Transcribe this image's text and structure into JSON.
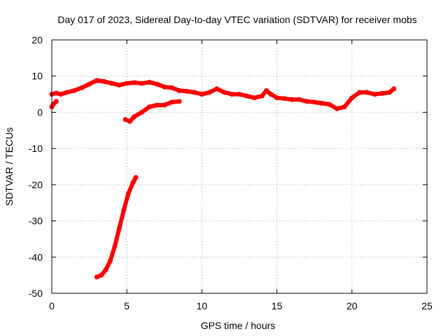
{
  "chart_data": {
    "type": "scatter",
    "title": "Day 017 of 2023, Sidereal Day-to-day VTEC variation (SDTVAR) for receiver mobs",
    "xlabel": "GPS time / hours",
    "ylabel": "SDTVAR / TECUs",
    "xlim": [
      0,
      25
    ],
    "ylim": [
      -50,
      20
    ],
    "xticks": [
      0,
      5,
      10,
      15,
      20,
      25
    ],
    "yticks": [
      20,
      10,
      0,
      -10,
      -20,
      -30,
      -40,
      -50
    ],
    "xtick_labels": [
      "0",
      "5",
      "10",
      "15",
      "20",
      "25"
    ],
    "ytick_labels": [
      "20",
      "10",
      "0",
      "-10",
      "-20",
      "-30",
      "-40",
      "-50"
    ],
    "grid": true,
    "legend": "none",
    "series_color": "#ff0000",
    "series": [
      {
        "name": "main-track",
        "x": [
          0.0,
          0.3,
          0.6,
          1.0,
          1.5,
          2.0,
          2.5,
          3.0,
          3.5,
          4.0,
          4.5,
          5.0,
          5.5,
          6.0,
          6.5,
          7.0,
          7.5,
          8.0,
          8.5,
          9.0,
          9.5,
          10.0,
          10.5,
          11.0,
          11.5,
          12.0,
          12.5,
          13.0,
          13.5,
          14.0,
          14.3,
          14.6,
          15.0,
          15.5,
          16.0,
          16.5,
          17.0,
          17.5,
          18.0,
          18.5,
          19.0,
          19.5,
          20.0,
          20.5,
          21.0,
          21.5,
          22.0,
          22.5,
          22.8
        ],
        "y": [
          5.0,
          5.3,
          5.0,
          5.5,
          6.0,
          6.8,
          7.8,
          8.8,
          8.5,
          8.0,
          7.5,
          8.0,
          8.2,
          8.0,
          8.3,
          7.8,
          7.0,
          6.8,
          6.0,
          5.8,
          5.5,
          5.0,
          5.5,
          6.5,
          5.5,
          5.0,
          5.0,
          4.5,
          4.0,
          4.5,
          6.0,
          5.0,
          4.0,
          3.8,
          3.5,
          3.5,
          3.0,
          2.8,
          2.5,
          2.2,
          1.0,
          1.5,
          4.0,
          5.5,
          5.5,
          5.0,
          5.2,
          5.5,
          6.5
        ]
      },
      {
        "name": "early-dip",
        "x": [
          0.0,
          0.1,
          0.3
        ],
        "y": [
          1.5,
          2.2,
          3.0
        ]
      },
      {
        "name": "recovery-track",
        "x": [
          4.9,
          5.2,
          5.5,
          6.0,
          6.5,
          7.0,
          7.5,
          8.0,
          8.5
        ],
        "y": [
          -2.0,
          -2.5,
          -1.2,
          0.0,
          1.5,
          2.0,
          2.0,
          2.8,
          3.0
        ]
      },
      {
        "name": "steep-track",
        "x": [
          3.0,
          3.3,
          3.6,
          3.9,
          4.2,
          4.5,
          4.8,
          5.1,
          5.4,
          5.6
        ],
        "y": [
          -45.5,
          -45.0,
          -43.5,
          -41.0,
          -37.0,
          -32.0,
          -27.0,
          -22.5,
          -19.5,
          -18.0
        ]
      }
    ]
  }
}
